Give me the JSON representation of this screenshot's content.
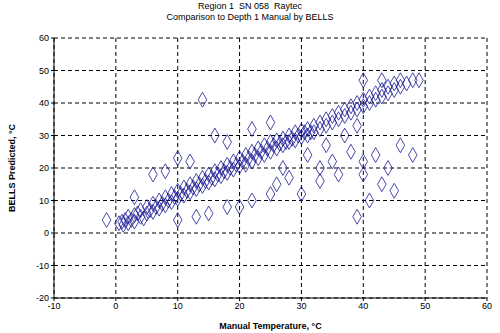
{
  "chart_data": {
    "type": "scatter",
    "title": "Region 1  SN 058  Raytec",
    "subtitle": "Comparison to Depth 1 Manual by BELLS",
    "x_label": "Manual Temperature, °C",
    "y_label": "BELLS Predicted, °C",
    "x": [
      -1.5,
      0.5,
      1,
      1.2,
      1.5,
      2,
      2,
      2.5,
      3,
      3,
      3.5,
      4,
      4,
      4.5,
      5,
      5,
      5.5,
      6,
      6,
      6.5,
      7,
      7,
      7.5,
      8,
      8,
      8.5,
      9,
      9,
      9.5,
      10,
      10,
      10.5,
      11,
      11,
      11.5,
      12,
      12,
      12.5,
      13,
      13,
      13.5,
      14,
      14,
      14.5,
      15,
      15,
      15.5,
      16,
      16,
      16.5,
      17,
      17,
      17.5,
      18,
      18,
      18.5,
      19,
      19,
      19.5,
      20,
      20,
      20.5,
      21,
      21,
      21.5,
      22,
      22,
      22.5,
      23,
      23,
      23.5,
      24,
      24,
      24.5,
      25,
      25,
      25.5,
      26,
      26,
      26.5,
      27,
      27,
      27.5,
      28,
      28,
      28.5,
      29,
      29,
      29.5,
      30,
      30,
      30.5,
      31,
      31,
      31.5,
      32,
      32,
      33,
      33,
      34,
      34,
      35,
      35,
      36,
      36,
      37,
      37,
      38,
      38,
      39,
      39,
      40,
      40,
      41,
      41,
      42,
      42,
      43,
      43,
      44,
      44,
      45,
      45,
      46,
      46,
      47,
      48,
      49,
      40,
      43,
      14,
      16,
      10,
      6,
      8,
      3,
      18,
      22,
      25,
      12,
      30,
      33,
      35,
      36,
      38,
      39,
      40,
      40,
      41,
      42,
      43,
      44,
      45,
      46,
      48,
      28,
      25,
      22,
      20,
      18,
      15,
      13,
      10,
      27,
      31,
      34,
      37,
      39,
      33,
      26
    ],
    "values": [
      4,
      3,
      3.5,
      2.5,
      4,
      3,
      5,
      4,
      5.5,
      3.5,
      6,
      5,
      7,
      4.5,
      6,
      8,
      7,
      6.5,
      9,
      8,
      7.5,
      10,
      9,
      8.5,
      11,
      10,
      9.5,
      12,
      11,
      10.5,
      13,
      12,
      11.5,
      14,
      13,
      12.5,
      15,
      14,
      13.5,
      16,
      15,
      14.5,
      17,
      16,
      15.5,
      18,
      17,
      16.5,
      19,
      18,
      17.5,
      20,
      19,
      18.5,
      21,
      20,
      19.5,
      22,
      21,
      20.5,
      23,
      22,
      21,
      24,
      23,
      22,
      25,
      24,
      23,
      26,
      25,
      24,
      27,
      26,
      25,
      28,
      27,
      26,
      28.5,
      27.5,
      27,
      29,
      28,
      28,
      30,
      29,
      28.5,
      31,
      30,
      29.5,
      31.5,
      31,
      30,
      32,
      31,
      31,
      33,
      32,
      34,
      33,
      35,
      34,
      36,
      35,
      37,
      36,
      38,
      37,
      39,
      38,
      40,
      39,
      41,
      40,
      42,
      41,
      43,
      42,
      44,
      43,
      45,
      44,
      46,
      45,
      47,
      46,
      47,
      47,
      47,
      47,
      41,
      30,
      23,
      18,
      19,
      11,
      28,
      32,
      34,
      22,
      12,
      16,
      22,
      18,
      25,
      5,
      18,
      22,
      10,
      24,
      15,
      20,
      13,
      27,
      24,
      17,
      12,
      10,
      8,
      8,
      6,
      5,
      4,
      20,
      24,
      27,
      30,
      33,
      20,
      15
    ],
    "color": "#1c1c96",
    "marker": "diamond",
    "xlim": [
      -10,
      60
    ],
    "xticks": [
      -10,
      0,
      10,
      20,
      30,
      40,
      50,
      60
    ],
    "ylim": [
      -20,
      60
    ],
    "yticks": [
      -20,
      -10,
      0,
      10,
      20,
      30,
      40,
      50,
      60
    ],
    "grid": true
  }
}
